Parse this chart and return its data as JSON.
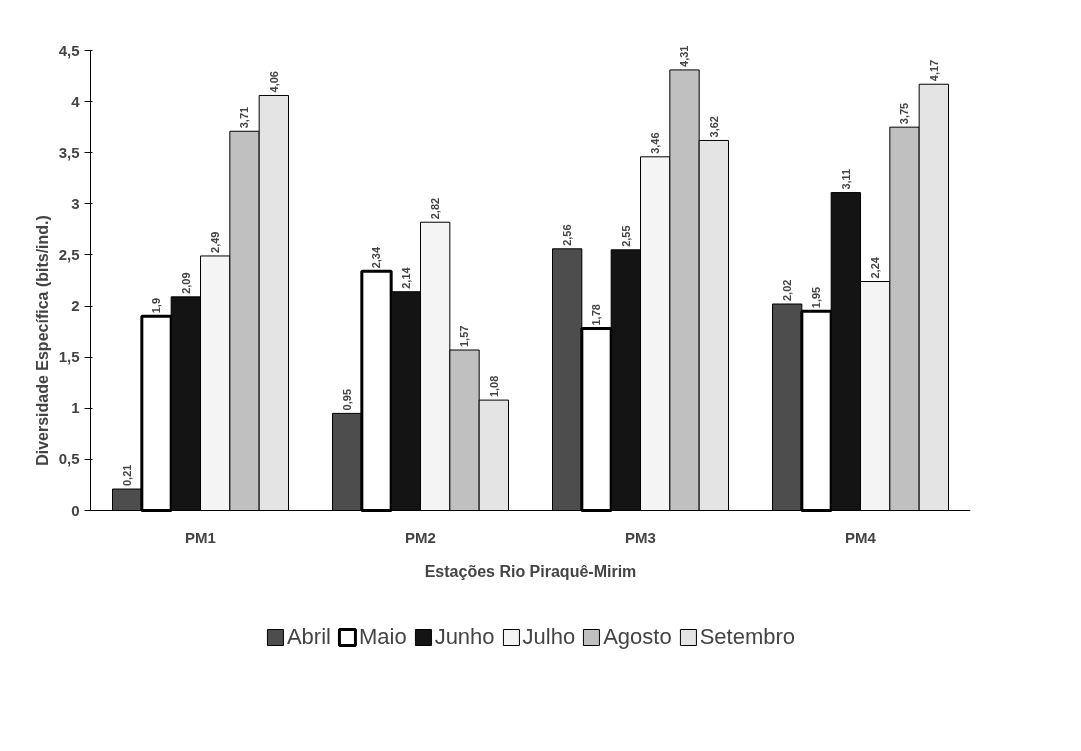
{
  "chart_data": {
    "type": "bar",
    "xlabel": "Estações Rio Piraquê-Mirim",
    "ylabel": "Diversidade Específica (bits/ind.)",
    "categories": [
      "PM1",
      "PM2",
      "PM3",
      "PM4"
    ],
    "series": [
      {
        "name": "Abril",
        "color": "#4d4d4d",
        "values": [
          0.21,
          0.95,
          2.56,
          2.02
        ],
        "value_labels": [
          "0,21",
          "0,95",
          "2,56",
          "2,02"
        ]
      },
      {
        "name": "Maio",
        "color": "#ffffff",
        "values": [
          1.9,
          2.34,
          1.78,
          1.95
        ],
        "value_labels": [
          "1,9",
          "2,34",
          "1,78",
          "1,95"
        ]
      },
      {
        "name": "Junho",
        "color": "#141414",
        "values": [
          2.09,
          2.14,
          2.55,
          3.11
        ],
        "value_labels": [
          "2,09",
          "2,14",
          "2,55",
          "3,11"
        ]
      },
      {
        "name": "Julho",
        "color": "#f4f4f4",
        "values": [
          2.49,
          2.82,
          3.46,
          2.24
        ],
        "value_labels": [
          "2,49",
          "2,82",
          "3,46",
          "2,24"
        ]
      },
      {
        "name": "Agosto",
        "color": "#c0c0c0",
        "values": [
          3.71,
          1.57,
          4.31,
          3.75
        ],
        "value_labels": [
          "3,71",
          "1,57",
          "4,31",
          "3,75"
        ]
      },
      {
        "name": "Setembro",
        "color": "#e4e4e4",
        "values": [
          4.06,
          1.08,
          3.62,
          4.17
        ],
        "value_labels": [
          "4,06",
          "1,08",
          "3,62",
          "4,17"
        ]
      }
    ],
    "ylim": [
      0,
      4.5
    ],
    "yticks": [
      0,
      {
        "value": 0.5,
        "label": "0,5"
      },
      1,
      {
        "value": 1.5,
        "label": "1,5"
      },
      2,
      {
        "value": 2.5,
        "label": "2,5"
      },
      3,
      {
        "value": 3.5,
        "label": "3,5"
      },
      4,
      {
        "value": 4.5,
        "label": "4,5"
      }
    ],
    "grid": false,
    "legend": "bottom"
  }
}
